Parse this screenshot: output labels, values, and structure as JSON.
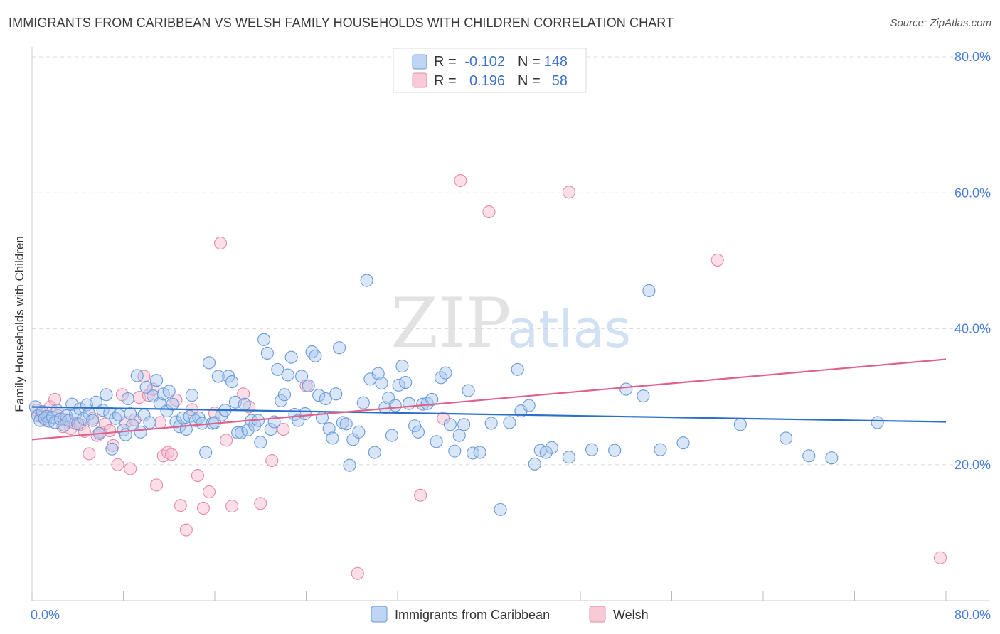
{
  "title": "IMMIGRANTS FROM CARIBBEAN VS WELSH FAMILY HOUSEHOLDS WITH CHILDREN CORRELATION CHART",
  "source": "Source: ZipAtlas.com",
  "watermark": {
    "zip": "ZIP",
    "atlas": "atlas"
  },
  "colors": {
    "blue_fill": "#a8c8f0",
    "blue_stroke": "#6a9ad8",
    "blue_line": "#2b6fca",
    "pink_fill": "#f5b8cb",
    "pink_stroke": "#e48aa8",
    "pink_line": "#e0608a",
    "tick_label": "#4a7fd4",
    "grid": "#dddddd"
  },
  "legend": {
    "rows": [
      {
        "series": "blue",
        "r_label": "R =",
        "r_value": "-0.102",
        "n_label": "N =",
        "n_value": "148"
      },
      {
        "series": "pink",
        "r_label": "R =",
        "r_value": "0.196",
        "n_label": "N =",
        "n_value": "58"
      }
    ]
  },
  "bottom_legend": [
    {
      "series": "blue",
      "label": "Immigrants from Caribbean"
    },
    {
      "series": "pink",
      "label": "Welsh"
    }
  ],
  "chart_data": {
    "type": "scatter",
    "title": "IMMIGRANTS FROM CARIBBEAN VS WELSH FAMILY HOUSEHOLDS WITH CHILDREN CORRELATION CHART",
    "xlabel": "",
    "ylabel": "Family Households with Children",
    "xlim": [
      0,
      80
    ],
    "ylim": [
      0,
      80
    ],
    "x_tick_labels": [
      {
        "value": 0,
        "label": "0.0%"
      },
      {
        "value": 80,
        "label": "80.0%"
      }
    ],
    "y_tick_labels": [
      {
        "value": 20,
        "label": "20.0%"
      },
      {
        "value": 40,
        "label": "40.0%"
      },
      {
        "value": 60,
        "label": "60.0%"
      },
      {
        "value": 80,
        "label": "80.0%"
      }
    ],
    "x_minor_ticks": [
      0,
      8,
      16,
      24,
      32,
      40,
      48,
      56,
      64,
      72,
      80
    ],
    "grid": true,
    "legend_position": "top-center",
    "series": [
      {
        "name": "Immigrants from Caribbean",
        "color": "blue",
        "r": -0.102,
        "n": 148,
        "trend": {
          "x": [
            0,
            80
          ],
          "y": [
            28.5,
            26.3
          ]
        },
        "points": [
          [
            0.3,
            28.5
          ],
          [
            0.5,
            27.2
          ],
          [
            0.7,
            26.5
          ],
          [
            0.9,
            27.8
          ],
          [
            1.1,
            26.8
          ],
          [
            1.3,
            27.1
          ],
          [
            1.5,
            26.4
          ],
          [
            1.8,
            27.0
          ],
          [
            2.0,
            26.2
          ],
          [
            2.2,
            28.0
          ],
          [
            2.5,
            26.7
          ],
          [
            2.8,
            25.8
          ],
          [
            3.0,
            27.2
          ],
          [
            3.2,
            26.5
          ],
          [
            3.5,
            28.9
          ],
          [
            3.8,
            27.4
          ],
          [
            4.0,
            26.0
          ],
          [
            4.2,
            28.2
          ],
          [
            4.5,
            26.8
          ],
          [
            4.8,
            28.8
          ],
          [
            5.0,
            27.5
          ],
          [
            5.3,
            26.5
          ],
          [
            5.6,
            29.2
          ],
          [
            5.9,
            24.6
          ],
          [
            6.2,
            28.0
          ],
          [
            6.5,
            30.3
          ],
          [
            6.8,
            27.6
          ],
          [
            7.0,
            22.3
          ],
          [
            7.3,
            26.8
          ],
          [
            7.6,
            27.3
          ],
          [
            8.0,
            25.1
          ],
          [
            8.2,
            24.4
          ],
          [
            8.4,
            29.7
          ],
          [
            8.6,
            27.5
          ],
          [
            8.8,
            25.8
          ],
          [
            9.2,
            33.1
          ],
          [
            9.5,
            24.8
          ],
          [
            9.8,
            27.3
          ],
          [
            10.0,
            31.4
          ],
          [
            10.3,
            26.2
          ],
          [
            10.6,
            30.1
          ],
          [
            10.9,
            32.4
          ],
          [
            11.2,
            29.0
          ],
          [
            11.5,
            30.4
          ],
          [
            11.8,
            27.9
          ],
          [
            12.0,
            30.8
          ],
          [
            12.3,
            28.9
          ],
          [
            12.6,
            26.3
          ],
          [
            12.9,
            25.6
          ],
          [
            13.2,
            26.9
          ],
          [
            13.5,
            25.2
          ],
          [
            13.8,
            27.1
          ],
          [
            14.0,
            30.2
          ],
          [
            14.3,
            26.5
          ],
          [
            14.6,
            26.9
          ],
          [
            14.9,
            26.1
          ],
          [
            15.2,
            21.8
          ],
          [
            15.5,
            35.0
          ],
          [
            15.8,
            26.1
          ],
          [
            16.0,
            26.2
          ],
          [
            16.3,
            33.0
          ],
          [
            16.6,
            27.3
          ],
          [
            16.9,
            28.0
          ],
          [
            17.2,
            33.0
          ],
          [
            17.5,
            32.2
          ],
          [
            17.8,
            29.2
          ],
          [
            18.0,
            24.7
          ],
          [
            18.3,
            24.7
          ],
          [
            18.6,
            28.9
          ],
          [
            18.9,
            25.1
          ],
          [
            19.2,
            26.5
          ],
          [
            19.5,
            25.8
          ],
          [
            19.8,
            26.5
          ],
          [
            20.0,
            23.3
          ],
          [
            20.3,
            38.4
          ],
          [
            20.6,
            36.4
          ],
          [
            20.9,
            25.2
          ],
          [
            21.2,
            26.3
          ],
          [
            21.5,
            34.0
          ],
          [
            21.8,
            29.4
          ],
          [
            22.1,
            30.3
          ],
          [
            22.4,
            33.2
          ],
          [
            22.7,
            35.8
          ],
          [
            23.0,
            27.4
          ],
          [
            23.3,
            26.5
          ],
          [
            23.6,
            33.0
          ],
          [
            23.9,
            27.5
          ],
          [
            24.2,
            31.6
          ],
          [
            24.5,
            36.6
          ],
          [
            24.8,
            36.0
          ],
          [
            25.1,
            30.2
          ],
          [
            25.4,
            26.9
          ],
          [
            25.7,
            29.7
          ],
          [
            26.0,
            25.3
          ],
          [
            26.3,
            23.9
          ],
          [
            26.6,
            30.4
          ],
          [
            26.9,
            37.2
          ],
          [
            27.2,
            26.2
          ],
          [
            27.5,
            26.0
          ],
          [
            27.8,
            19.9
          ],
          [
            28.1,
            23.7
          ],
          [
            28.6,
            24.8
          ],
          [
            29.0,
            29.1
          ],
          [
            29.3,
            47.1
          ],
          [
            29.6,
            32.6
          ],
          [
            30.0,
            21.8
          ],
          [
            30.3,
            33.4
          ],
          [
            30.6,
            32.0
          ],
          [
            30.9,
            28.4
          ],
          [
            31.2,
            29.8
          ],
          [
            31.5,
            24.3
          ],
          [
            31.8,
            28.7
          ],
          [
            32.1,
            31.7
          ],
          [
            32.4,
            34.5
          ],
          [
            32.7,
            32.1
          ],
          [
            33.0,
            29.0
          ],
          [
            33.5,
            25.7
          ],
          [
            33.8,
            24.8
          ],
          [
            34.2,
            28.9
          ],
          [
            34.6,
            29.0
          ],
          [
            35.0,
            29.6
          ],
          [
            35.4,
            23.4
          ],
          [
            35.8,
            32.8
          ],
          [
            36.2,
            33.5
          ],
          [
            36.6,
            25.9
          ],
          [
            37.0,
            22.0
          ],
          [
            37.4,
            24.3
          ],
          [
            37.8,
            25.9
          ],
          [
            38.2,
            30.9
          ],
          [
            38.6,
            21.7
          ],
          [
            39.2,
            21.8
          ],
          [
            40.2,
            26.1
          ],
          [
            41.0,
            13.4
          ],
          [
            41.8,
            26.2
          ],
          [
            42.5,
            34.0
          ],
          [
            42.8,
            27.9
          ],
          [
            43.5,
            28.7
          ],
          [
            44.0,
            20.1
          ],
          [
            44.5,
            22.1
          ],
          [
            45.0,
            21.8
          ],
          [
            45.5,
            22.5
          ],
          [
            47.0,
            21.1
          ],
          [
            49.0,
            22.2
          ],
          [
            51.0,
            22.1
          ],
          [
            52.0,
            31.1
          ],
          [
            53.5,
            30.1
          ],
          [
            54.0,
            45.6
          ],
          [
            55.0,
            22.2
          ],
          [
            57.0,
            23.2
          ],
          [
            62.0,
            25.9
          ],
          [
            66.0,
            23.9
          ],
          [
            68.0,
            21.3
          ],
          [
            70.0,
            21.0
          ],
          [
            74.0,
            26.2
          ]
        ]
      },
      {
        "name": "Welsh",
        "color": "pink",
        "r": 0.196,
        "n": 58,
        "trend": {
          "x": [
            0,
            80
          ],
          "y": [
            23.7,
            35.5
          ]
        },
        "points": [
          [
            0.4,
            28.0
          ],
          [
            0.8,
            27.1
          ],
          [
            1.2,
            26.5
          ],
          [
            1.6,
            28.5
          ],
          [
            2.0,
            29.6
          ],
          [
            2.3,
            27.2
          ],
          [
            2.7,
            25.6
          ],
          [
            3.0,
            26.6
          ],
          [
            3.4,
            25.3
          ],
          [
            3.8,
            26.1
          ],
          [
            4.2,
            25.9
          ],
          [
            4.6,
            24.9
          ],
          [
            5.0,
            21.6
          ],
          [
            5.3,
            26.8
          ],
          [
            5.7,
            24.3
          ],
          [
            6.0,
            24.8
          ],
          [
            6.4,
            26.0
          ],
          [
            6.8,
            25.0
          ],
          [
            7.1,
            22.8
          ],
          [
            7.5,
            20.0
          ],
          [
            7.9,
            30.3
          ],
          [
            8.2,
            26.2
          ],
          [
            8.6,
            19.4
          ],
          [
            9.0,
            26.6
          ],
          [
            9.4,
            29.9
          ],
          [
            9.8,
            33.0
          ],
          [
            10.2,
            30.2
          ],
          [
            10.6,
            31.1
          ],
          [
            10.9,
            17.0
          ],
          [
            11.2,
            26.2
          ],
          [
            11.5,
            21.3
          ],
          [
            11.9,
            21.8
          ],
          [
            12.2,
            21.5
          ],
          [
            12.6,
            29.5
          ],
          [
            13.0,
            14.0
          ],
          [
            13.5,
            10.4
          ],
          [
            14.0,
            28.1
          ],
          [
            14.5,
            18.4
          ],
          [
            15.0,
            13.6
          ],
          [
            15.5,
            16.0
          ],
          [
            16.0,
            27.6
          ],
          [
            16.5,
            52.6
          ],
          [
            17.0,
            23.6
          ],
          [
            17.5,
            13.9
          ],
          [
            18.5,
            30.4
          ],
          [
            19.0,
            28.5
          ],
          [
            20.0,
            14.3
          ],
          [
            21.0,
            20.6
          ],
          [
            22.0,
            25.2
          ],
          [
            24.0,
            31.6
          ],
          [
            28.5,
            4.0
          ],
          [
            34.0,
            15.5
          ],
          [
            36.0,
            26.8
          ],
          [
            37.5,
            61.8
          ],
          [
            40.0,
            57.2
          ],
          [
            47.0,
            60.1
          ],
          [
            60.0,
            50.1
          ],
          [
            79.5,
            6.3
          ]
        ]
      }
    ]
  }
}
